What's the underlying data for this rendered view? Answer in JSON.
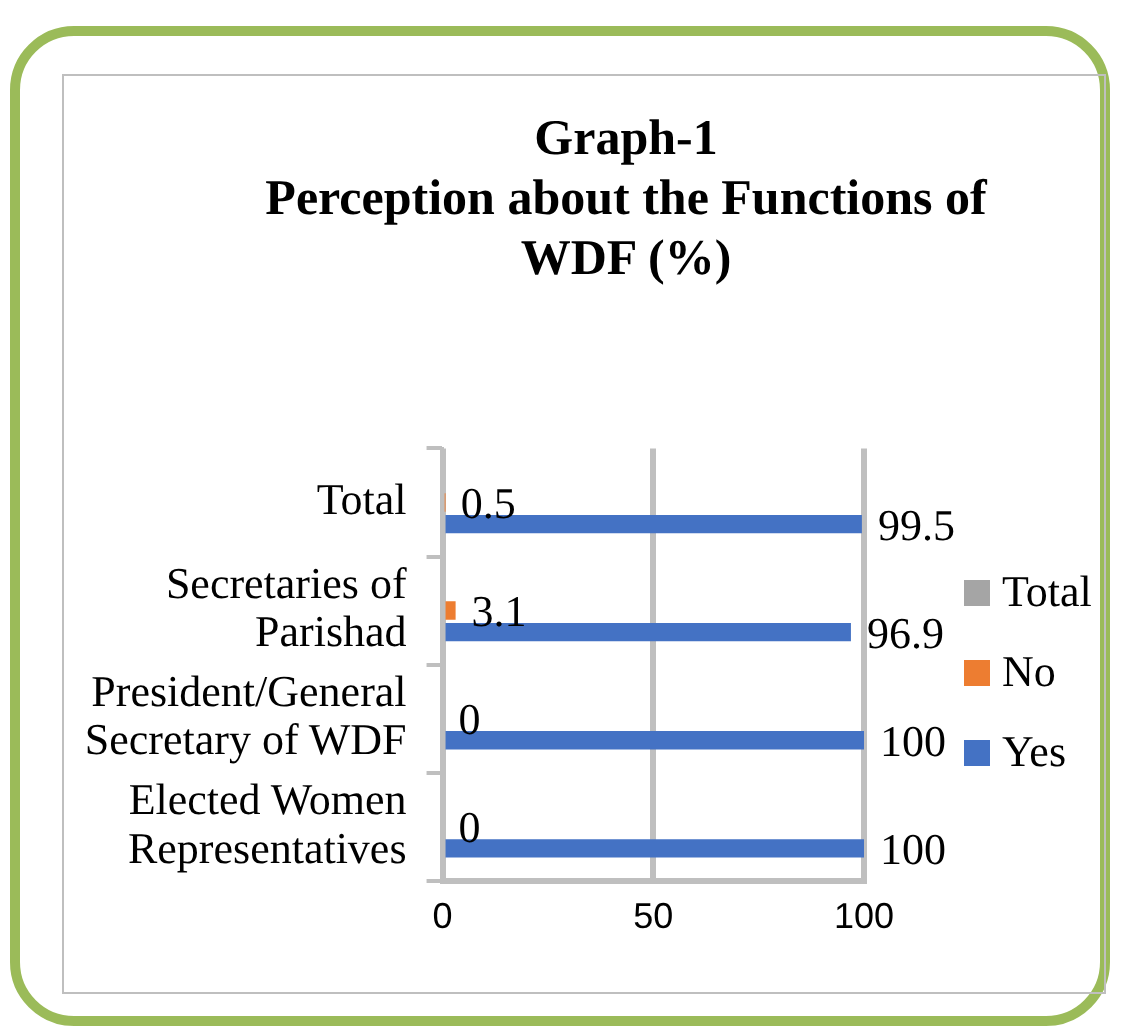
{
  "chart_data": {
    "type": "bar",
    "orientation": "horizontal",
    "title": "Graph-1",
    "subtitle": "Perception about the Functions of WDF (%)",
    "categories": [
      "Total",
      "Secretaries of Parishad",
      "President/General Secretary of WDF",
      "Elected Women Representatives"
    ],
    "series": [
      {
        "name": "Total",
        "color": "#a5a5a5",
        "values": [
          null,
          null,
          null,
          null
        ]
      },
      {
        "name": "No",
        "color": "#ed7d31",
        "values": [
          0.5,
          3.1,
          0,
          0
        ]
      },
      {
        "name": "Yes",
        "color": "#4472c4",
        "values": [
          99.5,
          96.9,
          100,
          100
        ]
      }
    ],
    "xlim": [
      0,
      100
    ],
    "xticks": [
      0,
      50,
      100
    ],
    "grid": "x",
    "legend": "right",
    "data_labels": true
  }
}
